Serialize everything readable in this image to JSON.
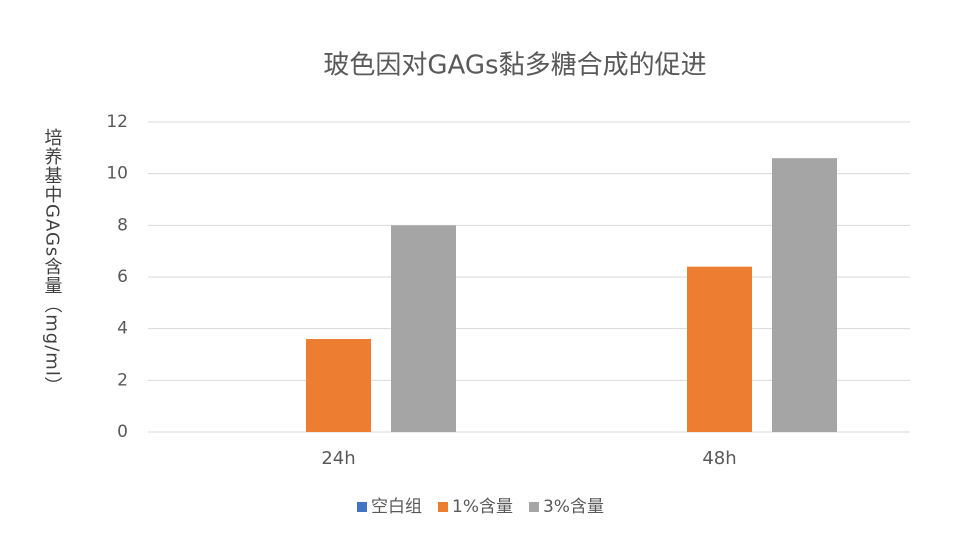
{
  "chart_data": {
    "type": "bar",
    "title": "玻色因对GAGs黏多糖合成的促进",
    "y_label": "培养基中GAGs含量（mg/ml）",
    "categories": [
      "24h",
      "48h"
    ],
    "series": [
      {
        "name": "空白组",
        "color": "#4472c4",
        "values": [
          0,
          0
        ]
      },
      {
        "name": "1%含量",
        "color": "#ed7d31",
        "values": [
          3.6,
          6.4
        ]
      },
      {
        "name": "3%含量",
        "color": "#a5a5a5",
        "values": [
          8.0,
          10.6
        ]
      }
    ],
    "ylim": [
      0,
      12
    ],
    "yticks": [
      0,
      2,
      4,
      6,
      8,
      10,
      12
    ],
    "grid": true,
    "legend": "bottom"
  }
}
